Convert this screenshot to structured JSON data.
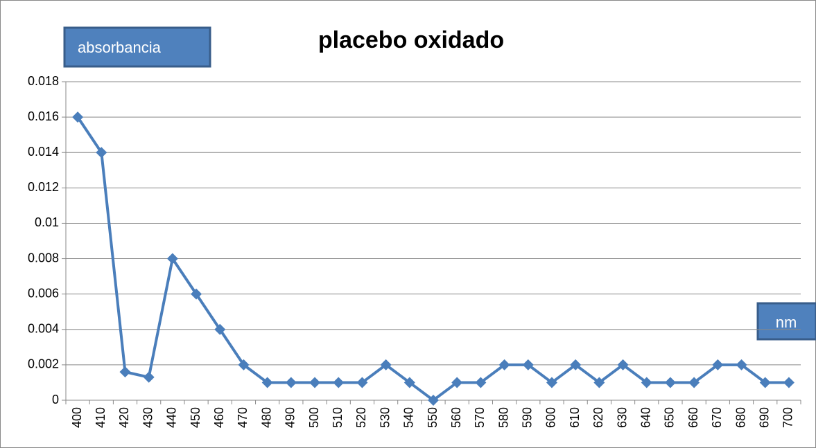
{
  "chart_data": {
    "type": "line",
    "title": "placebo oxidado",
    "y_label": "absorbancia",
    "x_label": "nm",
    "categories": [
      "400",
      "410",
      "420",
      "430",
      "440",
      "450",
      "460",
      "470",
      "480",
      "490",
      "500",
      "510",
      "520",
      "530",
      "540",
      "550",
      "560",
      "570",
      "580",
      "590",
      "600",
      "610",
      "620",
      "630",
      "640",
      "650",
      "660",
      "670",
      "680",
      "690",
      "700"
    ],
    "series": [
      {
        "name": "absorbancia",
        "color": "#4a7ebb",
        "values": [
          0.016,
          0.014,
          0.0016,
          0.0013,
          0.008,
          0.006,
          0.004,
          0.002,
          0.001,
          0.001,
          0.001,
          0.001,
          0.001,
          0.002,
          0.001,
          0,
          0.001,
          0.001,
          0.002,
          0.002,
          0.001,
          0.002,
          0.001,
          0.002,
          0.001,
          0.001,
          0.001,
          0.002,
          0.002,
          0.001,
          0.001
        ]
      }
    ],
    "ylim": [
      0,
      0.018
    ],
    "yticks": [
      0,
      0.002,
      0.004,
      0.006,
      0.008,
      0.01,
      0.012,
      0.014,
      0.016,
      0.018
    ],
    "grid": true
  }
}
